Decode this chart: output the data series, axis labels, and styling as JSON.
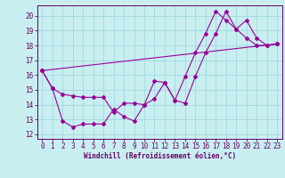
{
  "xlabel": "Windchill (Refroidissement éolien,°C)",
  "bg_color": "#c8eef0",
  "grid_color": "#a0d8dc",
  "line_color": "#990099",
  "spine_color": "#660066",
  "xlim": [
    -0.5,
    23.5
  ],
  "ylim": [
    11.7,
    20.7
  ],
  "yticks": [
    12,
    13,
    14,
    15,
    16,
    17,
    18,
    19,
    20
  ],
  "xticks": [
    0,
    1,
    2,
    3,
    4,
    5,
    6,
    7,
    8,
    9,
    10,
    11,
    12,
    13,
    14,
    15,
    16,
    17,
    18,
    19,
    20,
    21,
    22,
    23
  ],
  "series1_x": [
    0,
    1,
    2,
    3,
    4,
    5,
    6,
    7,
    8,
    9,
    10,
    11,
    12,
    13,
    14,
    15,
    16,
    17,
    18,
    19,
    20,
    21,
    22,
    23
  ],
  "series1_y": [
    16.3,
    15.1,
    14.7,
    14.6,
    14.5,
    14.5,
    14.5,
    13.5,
    14.1,
    14.1,
    14.0,
    15.6,
    15.5,
    14.3,
    15.9,
    17.5,
    18.8,
    20.3,
    19.7,
    19.1,
    18.5,
    18.0,
    18.0,
    18.1
  ],
  "series2_x": [
    0,
    1,
    2,
    3,
    4,
    5,
    6,
    7,
    8,
    9,
    10,
    11,
    12,
    13,
    14,
    15,
    16,
    17,
    18,
    19,
    20,
    21,
    22,
    23
  ],
  "series2_y": [
    16.3,
    15.1,
    12.9,
    12.5,
    12.7,
    12.7,
    12.7,
    13.7,
    13.2,
    12.9,
    14.0,
    14.4,
    15.5,
    14.3,
    14.1,
    15.9,
    17.5,
    18.8,
    20.3,
    19.1,
    19.7,
    18.5,
    18.0,
    18.1
  ],
  "series3_x": [
    0,
    23
  ],
  "series3_y": [
    16.3,
    18.1
  ],
  "xlabel_fontsize": 5.5,
  "tick_fontsize": 5.5,
  "linewidth": 0.8,
  "markersize": 2.0
}
